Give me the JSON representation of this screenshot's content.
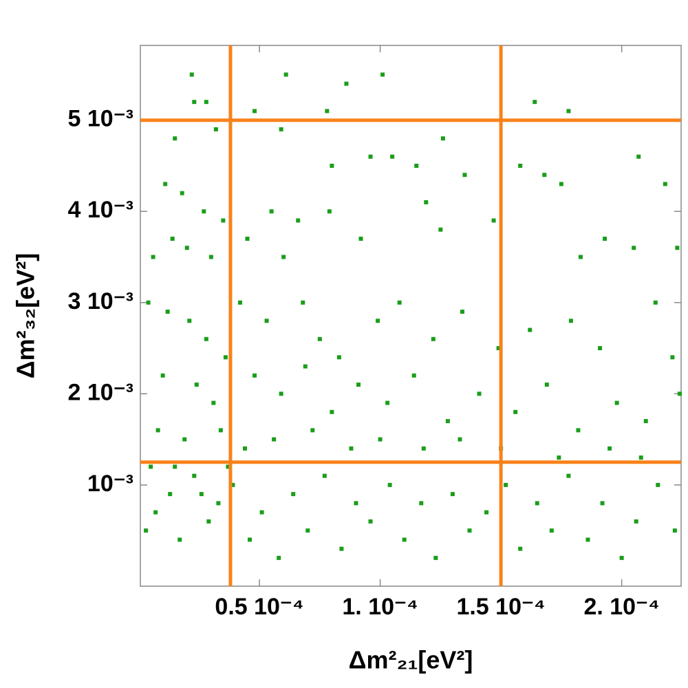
{
  "chart_data": {
    "type": "scatter",
    "x_label": "Δm²₂₁[eV²]",
    "y_label": "Δm²₃₂[eV²]",
    "color": "#1a9e1a",
    "line_color": "#f7821b",
    "xlim": [
      7e-07,
      0.0002246
    ],
    "ylim": [
      -0.00011,
      0.00582
    ],
    "xticks": [
      {
        "value": 5e-05,
        "label": "0.5 10⁻⁴"
      },
      {
        "value": 0.0001,
        "label": "1. 10⁻⁴"
      },
      {
        "value": 0.00015,
        "label": "1.5 10⁻⁴"
      },
      {
        "value": 0.0002,
        "label": "2. 10⁻⁴"
      }
    ],
    "yticks": [
      {
        "value": 0.001,
        "label": "10⁻³"
      },
      {
        "value": 0.002,
        "label": "2 10⁻³"
      },
      {
        "value": 0.003,
        "label": "3 10⁻³"
      },
      {
        "value": 0.004,
        "label": "4 10⁻³"
      },
      {
        "value": 0.005,
        "label": "5 10⁻³"
      }
    ],
    "vlines": [
      3.8e-05,
      0.00015
    ],
    "hlines": [
      0.00125,
      0.005
    ],
    "x": [
      2.2e-05,
      2.3e-05,
      2.8e-05,
      6.1e-05,
      0.000101,
      8.6e-05,
      7.8e-05,
      0.000164,
      0.000178,
      4.8e-05,
      3.2e-05,
      1.5e-05,
      5.9e-05,
      0.000126,
      1.1e-05,
      1.8e-05,
      2.7e-05,
      3.5e-05,
      1.4e-05,
      2e-05,
      3e-05,
      6e-06,
      9.6e-05,
      0.000105,
      8e-05,
      0.000115,
      0.000135,
      0.000168,
      0.000175,
      0.000158,
      0.000207,
      0.000218,
      5.5e-05,
      6.6e-05,
      7.9e-05,
      0.000119,
      0.000147,
      0.000193,
      0.000205,
      0.000223,
      0.000183,
      9.2e-05,
      0.000125,
      6e-05,
      4.5e-05,
      4e-06,
      1.2e-05,
      2.1e-05,
      2.8e-05,
      3.6e-05,
      4.2e-05,
      5.3e-05,
      6.8e-05,
      7.5e-05,
      8.3e-05,
      9.9e-05,
      0.000108,
      0.000122,
      0.000134,
      0.000149,
      0.000162,
      0.000179,
      0.000191,
      0.000214,
      0.000221,
      1e-05,
      2.4e-05,
      3.1e-05,
      4.8e-05,
      5.9e-05,
      6.9e-05,
      8e-05,
      9.1e-05,
      0.000103,
      0.000114,
      0.000128,
      0.000141,
      0.000156,
      0.000169,
      0.000182,
      0.000198,
      0.00021,
      0.000224,
      8e-06,
      1.9e-05,
      3.4e-05,
      4.4e-05,
      5.6e-05,
      7.2e-05,
      8.8e-05,
      0.0001,
      0.000118,
      0.000133,
      0.00015,
      0.000174,
      0.000195,
      0.000208,
      3e-06,
      7e-06,
      1.3e-05,
      1.7e-05,
      2.3e-05,
      2.9e-05,
      3.3e-05,
      3.9e-05,
      4.6e-05,
      5.1e-05,
      5.8e-05,
      6.4e-05,
      7e-05,
      7.7e-05,
      8.4e-05,
      9e-05,
      9.6e-05,
      0.000104,
      0.00011,
      0.000117,
      0.000123,
      0.00013,
      0.000137,
      0.000144,
      0.000152,
      0.000158,
      0.000165,
      0.000171,
      0.000178,
      0.000186,
      0.000192,
      0.0002,
      0.000206,
      0.000215,
      0.000222,
      5e-06,
      1.5e-05,
      2.6e-05,
      3.7e-05
    ],
    "values": [
      0.0055,
      0.0052,
      0.0052,
      0.0055,
      0.0055,
      0.0054,
      0.0051,
      0.0052,
      0.0051,
      0.0051,
      0.0049,
      0.0048,
      0.0049,
      0.0048,
      0.0043,
      0.0042,
      0.004,
      0.0039,
      0.0037,
      0.0036,
      0.0035,
      0.0035,
      0.0046,
      0.0046,
      0.0045,
      0.0045,
      0.0044,
      0.0044,
      0.0043,
      0.0045,
      0.0046,
      0.0043,
      0.004,
      0.0039,
      0.004,
      0.0041,
      0.0039,
      0.0037,
      0.0036,
      0.0036,
      0.0035,
      0.0037,
      0.0038,
      0.0035,
      0.0037,
      0.003,
      0.0029,
      0.0028,
      0.0026,
      0.0024,
      0.003,
      0.0028,
      0.003,
      0.0026,
      0.0024,
      0.0028,
      0.003,
      0.0026,
      0.0029,
      0.0025,
      0.0027,
      0.0028,
      0.0025,
      0.003,
      0.0024,
      0.0022,
      0.0021,
      0.0019,
      0.0022,
      0.002,
      0.0023,
      0.0018,
      0.0021,
      0.0019,
      0.0022,
      0.0017,
      0.002,
      0.0018,
      0.0021,
      0.0016,
      0.0019,
      0.0017,
      0.002,
      0.0016,
      0.0015,
      0.0016,
      0.0014,
      0.0015,
      0.0016,
      0.0014,
      0.0015,
      0.0014,
      0.0015,
      0.0014,
      0.0013,
      0.0014,
      0.0013,
      0.0005,
      0.0007,
      0.0009,
      0.0004,
      0.0011,
      0.0006,
      0.0008,
      0.001,
      0.0004,
      0.0007,
      0.0002,
      0.0009,
      0.0005,
      0.0011,
      0.0003,
      0.0008,
      0.0006,
      0.001,
      0.0004,
      0.0008,
      0.0002,
      0.0009,
      0.0005,
      0.0007,
      0.001,
      0.0003,
      0.0008,
      0.0005,
      0.0011,
      0.0004,
      0.0008,
      0.0002,
      0.0006,
      0.001,
      0.0005,
      0.0012,
      0.0012,
      0.0009,
      0.0012
    ]
  }
}
